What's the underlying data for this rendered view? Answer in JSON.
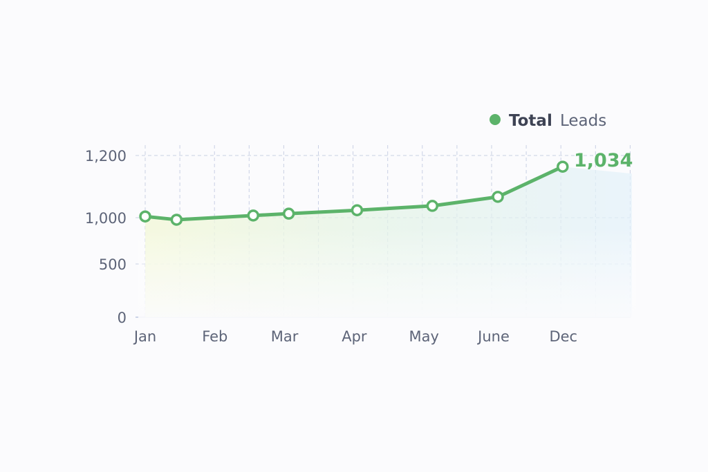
{
  "chart_data": {
    "type": "line",
    "title": "",
    "xlabel": "",
    "ylabel": "",
    "categories": [
      "Jan",
      "Feb",
      "Mar",
      "Apr",
      "May",
      "June",
      "Dec"
    ],
    "y_ticks": [
      0,
      500,
      1000,
      1200
    ],
    "y_tick_labels": [
      "0",
      "500",
      "1,000",
      "1,200"
    ],
    "ylim": [
      0,
      1200
    ],
    "grid": true,
    "legend": {
      "placement": "top-right",
      "label_strong": "Total",
      "label_rest": "Leads"
    },
    "series": [
      {
        "name": "Total Leads",
        "color": "#5cb36a",
        "x": [
          0,
          0.45,
          1.55,
          2.06,
          3.04,
          4.12,
          5.06,
          5.99
        ],
        "values": [
          1004,
          978,
          1007,
          1013,
          1024,
          1038,
          1067,
          1164
        ]
      }
    ],
    "annotation": {
      "text": "1,034",
      "color": "#5cb36a"
    }
  }
}
